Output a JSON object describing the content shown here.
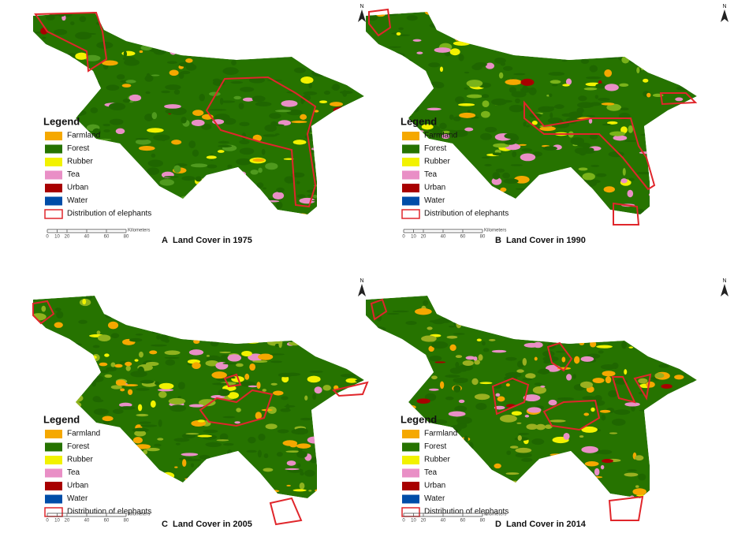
{
  "panels": [
    {
      "letter": "A",
      "title": "Land Cover in 1975"
    },
    {
      "letter": "B",
      "title": "Land Cover in 1990"
    },
    {
      "letter": "C",
      "title": "Land Cover in 2005"
    },
    {
      "letter": "D",
      "title": "Land Cover in 2014"
    }
  ],
  "legend": {
    "title": "Legend",
    "items": [
      {
        "label": "Farmland",
        "color": "#f5a800"
      },
      {
        "label": "Forest",
        "color": "#267300"
      },
      {
        "label": "Rubber",
        "color": "#f2f200"
      },
      {
        "label": "Tea",
        "color": "#e98fc6"
      },
      {
        "label": "Urban",
        "color": "#a80000"
      },
      {
        "label": "Water",
        "color": "#004da8"
      },
      {
        "label": "Distribution of elephants",
        "color": "#e0262b"
      }
    ]
  },
  "scale_bar": {
    "ticks": [
      "0",
      "10",
      "20",
      "40",
      "60",
      "80"
    ],
    "unit": "Kilometers"
  },
  "north": "N"
}
